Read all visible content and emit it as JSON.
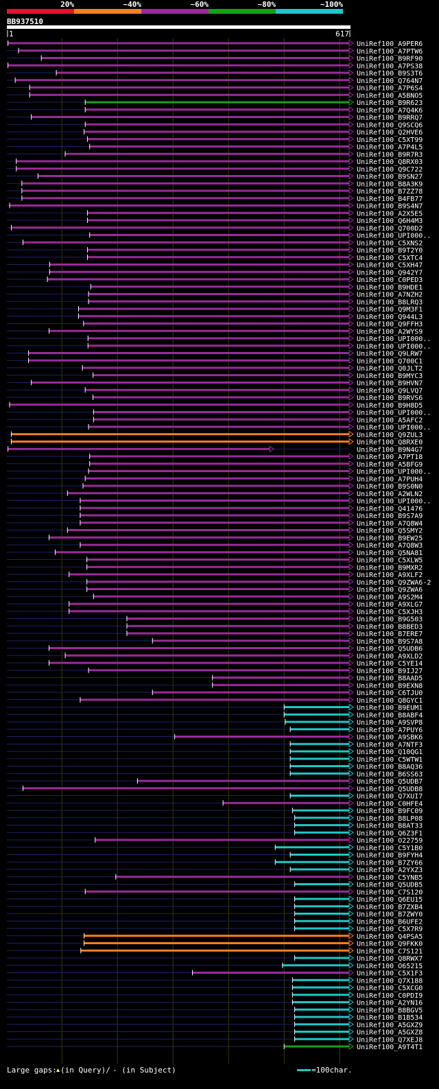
{
  "chart_data": {
    "type": "alignment-overview",
    "query_name": "BB937510",
    "query_start_label": "1",
    "query_end_label": "617",
    "query_length": 617,
    "identity_legend": [
      {
        "label": "20%",
        "color": "#e8112d"
      },
      {
        "label": "~40%",
        "color": "#ff7f1e"
      },
      {
        "label": "~60%",
        "color": "#9b2b9b"
      },
      {
        "label": "~80%",
        "color": "#16a016"
      },
      {
        "label": "~100%",
        "color": "#1ec8c8"
      }
    ],
    "footer": {
      "gaps_label": "Large gaps:",
      "gaps_query_text": "(in Query)/",
      "gaps_subject_text": "- (in Subject)",
      "scale_text": "=100char."
    },
    "hits": [
      {
        "name": "UniRef100_A9PER6",
        "start": 3,
        "end": 617,
        "class": "60"
      },
      {
        "name": "UniRef100_A7PTW6",
        "start": 22,
        "end": 617,
        "class": "60"
      },
      {
        "name": "UniRef100_B9RF90",
        "start": 63,
        "end": 617,
        "class": "60"
      },
      {
        "name": "UniRef100_A7PS38",
        "start": 3,
        "end": 617,
        "class": "60"
      },
      {
        "name": "UniRef100_B9S3T6",
        "start": 90,
        "end": 617,
        "class": "60"
      },
      {
        "name": "UniRef100_Q764N7",
        "start": 16,
        "end": 617,
        "class": "60"
      },
      {
        "name": "UniRef100_A7P6S4",
        "start": 42,
        "end": 617,
        "class": "60"
      },
      {
        "name": "UniRef100_A5BNO5",
        "start": 42,
        "end": 617,
        "class": "60"
      },
      {
        "name": "UniRef100_B9R623",
        "start": 142,
        "end": 617,
        "class": "80"
      },
      {
        "name": "UniRef100_A7Q4K6",
        "start": 142,
        "end": 617,
        "class": "60"
      },
      {
        "name": "UniRef100_B9RRQ7",
        "start": 45,
        "end": 617,
        "class": "60"
      },
      {
        "name": "UniRef100_Q9SCQ6",
        "start": 142,
        "end": 617,
        "class": "60"
      },
      {
        "name": "UniRef100_Q2HVE6",
        "start": 140,
        "end": 617,
        "class": "60"
      },
      {
        "name": "UniRef100_C5XT99",
        "start": 146,
        "end": 617,
        "class": "60"
      },
      {
        "name": "UniRef100_A7P4L5",
        "start": 150,
        "end": 617,
        "class": "60"
      },
      {
        "name": "UniRef100_B9R7R3",
        "start": 106,
        "end": 617,
        "class": "60"
      },
      {
        "name": "UniRef100_Q8RX03",
        "start": 18,
        "end": 617,
        "class": "60"
      },
      {
        "name": "UniRef100_Q9C722",
        "start": 18,
        "end": 617,
        "class": "60"
      },
      {
        "name": "UniRef100_B9SN27",
        "start": 57,
        "end": 617,
        "class": "60"
      },
      {
        "name": "UniRef100_B8A3K9",
        "start": 28,
        "end": 617,
        "class": "60"
      },
      {
        "name": "UniRef100_B7ZZ78",
        "start": 28,
        "end": 617,
        "class": "60"
      },
      {
        "name": "UniRef100_B4FB77",
        "start": 28,
        "end": 617,
        "class": "60"
      },
      {
        "name": "UniRef100_B9S4N7",
        "start": 6,
        "end": 617,
        "class": "60"
      },
      {
        "name": "UniRef100_A2X5E5",
        "start": 146,
        "end": 617,
        "class": "60"
      },
      {
        "name": "UniRef100_Q6H4M3",
        "start": 146,
        "end": 617,
        "class": "60"
      },
      {
        "name": "UniRef100_Q700D2",
        "start": 9,
        "end": 617,
        "class": "60"
      },
      {
        "name": "UniRef100_UPI000..",
        "start": 150,
        "end": 617,
        "class": "60"
      },
      {
        "name": "UniRef100_C5XNS2",
        "start": 30,
        "end": 617,
        "class": "60"
      },
      {
        "name": "UniRef100_B9T2Y0",
        "start": 146,
        "end": 617,
        "class": "60"
      },
      {
        "name": "UniRef100_C5XTC4",
        "start": 146,
        "end": 617,
        "class": "60"
      },
      {
        "name": "UniRef100_C5XH47",
        "start": 78,
        "end": 617,
        "class": "60"
      },
      {
        "name": "UniRef100_Q942Y7",
        "start": 78,
        "end": 617,
        "class": "60"
      },
      {
        "name": "UniRef100_C0PED3",
        "start": 74,
        "end": 617,
        "class": "60"
      },
      {
        "name": "UniRef100_B9HDE1",
        "start": 152,
        "end": 617,
        "class": "60"
      },
      {
        "name": "UniRef100_A7NZH2",
        "start": 148,
        "end": 617,
        "class": "60"
      },
      {
        "name": "UniRef100_B8LRQ3",
        "start": 148,
        "end": 617,
        "class": "60"
      },
      {
        "name": "UniRef100_Q9M3F1",
        "start": 130,
        "end": 617,
        "class": "60"
      },
      {
        "name": "UniRef100_Q944L3",
        "start": 130,
        "end": 617,
        "class": "60"
      },
      {
        "name": "UniRef100_Q9FFH3",
        "start": 139,
        "end": 617,
        "class": "60"
      },
      {
        "name": "UniRef100_A2WYS9",
        "start": 77,
        "end": 617,
        "class": "60"
      },
      {
        "name": "UniRef100_UPI000..",
        "start": 147,
        "end": 617,
        "class": "60"
      },
      {
        "name": "UniRef100_UPI000..",
        "start": 147,
        "end": 617,
        "class": "60"
      },
      {
        "name": "UniRef100_Q9LRW7",
        "start": 40,
        "end": 617,
        "class": "60"
      },
      {
        "name": "UniRef100_Q700C1",
        "start": 40,
        "end": 617,
        "class": "60"
      },
      {
        "name": "UniRef100_Q0JLT2",
        "start": 137,
        "end": 617,
        "class": "60"
      },
      {
        "name": "UniRef100_B9MYC3",
        "start": 156,
        "end": 617,
        "class": "60"
      },
      {
        "name": "UniRef100_B9HVN7",
        "start": 45,
        "end": 617,
        "class": "60"
      },
      {
        "name": "UniRef100_Q9LVQ7",
        "start": 142,
        "end": 617,
        "class": "60"
      },
      {
        "name": "UniRef100_B9RVS6",
        "start": 156,
        "end": 617,
        "class": "60"
      },
      {
        "name": "UniRef100_B9H8D5",
        "start": 6,
        "end": 617,
        "class": "60"
      },
      {
        "name": "UniRef100_UPI000..",
        "start": 157,
        "end": 617,
        "class": "60"
      },
      {
        "name": "UniRef100_A5AFC2",
        "start": 157,
        "end": 617,
        "class": "60"
      },
      {
        "name": "UniRef100_UPI000..",
        "start": 148,
        "end": 617,
        "class": "60"
      },
      {
        "name": "UniRef100_Q9ZUL3",
        "start": 9,
        "end": 617,
        "class": "40"
      },
      {
        "name": "UniRef100_Q8RXE0",
        "start": 9,
        "end": 617,
        "class": "40"
      },
      {
        "name": "UniRef100_B9N4G7",
        "start": 3,
        "end": 474,
        "class": "60"
      },
      {
        "name": "UniRef100_A7PT18",
        "start": 150,
        "end": 617,
        "class": "60"
      },
      {
        "name": "UniRef100_A5BFG9",
        "start": 150,
        "end": 617,
        "class": "60"
      },
      {
        "name": "UniRef100_UPI000..",
        "start": 148,
        "end": 617,
        "class": "60"
      },
      {
        "name": "UniRef100_A7PUH4",
        "start": 142,
        "end": 617,
        "class": "60"
      },
      {
        "name": "UniRef100_B9S0N0",
        "start": 138,
        "end": 617,
        "class": "60"
      },
      {
        "name": "UniRef100_A2WLN2",
        "start": 110,
        "end": 617,
        "class": "60"
      },
      {
        "name": "UniRef100_UPI000..",
        "start": 133,
        "end": 617,
        "class": "60"
      },
      {
        "name": "UniRef100_Q41476",
        "start": 133,
        "end": 617,
        "class": "60"
      },
      {
        "name": "UniRef100_B9S7A9",
        "start": 133,
        "end": 617,
        "class": "60"
      },
      {
        "name": "UniRef100_A7Q8W4",
        "start": 133,
        "end": 617,
        "class": "60"
      },
      {
        "name": "UniRef100_Q5SMY2",
        "start": 110,
        "end": 617,
        "class": "60"
      },
      {
        "name": "UniRef100_B9EW25",
        "start": 77,
        "end": 617,
        "class": "60"
      },
      {
        "name": "UniRef100_A7Q8W3",
        "start": 133,
        "end": 617,
        "class": "60"
      },
      {
        "name": "UniRef100_Q5NA81",
        "start": 88,
        "end": 617,
        "class": "60"
      },
      {
        "name": "UniRef100_C5XLW5",
        "start": 145,
        "end": 617,
        "class": "60"
      },
      {
        "name": "UniRef100_B9MXR2",
        "start": 145,
        "end": 617,
        "class": "60"
      },
      {
        "name": "UniRef100_A9XLF2",
        "start": 113,
        "end": 617,
        "class": "60"
      },
      {
        "name": "UniRef100_Q9ZWA6-2",
        "start": 145,
        "end": 617,
        "class": "60"
      },
      {
        "name": "UniRef100_Q9ZWA6",
        "start": 145,
        "end": 617,
        "class": "60"
      },
      {
        "name": "UniRef100_A9S2M4",
        "start": 157,
        "end": 617,
        "class": "60"
      },
      {
        "name": "UniRef100_A9XLG7",
        "start": 113,
        "end": 617,
        "class": "60"
      },
      {
        "name": "UniRef100_C5XJH3",
        "start": 113,
        "end": 617,
        "class": "60"
      },
      {
        "name": "UniRef100_B9G503",
        "start": 217,
        "end": 617,
        "class": "60"
      },
      {
        "name": "UniRef100_B8BED3",
        "start": 217,
        "end": 617,
        "class": "60"
      },
      {
        "name": "UniRef100_B7ERE7",
        "start": 217,
        "end": 617,
        "class": "60"
      },
      {
        "name": "UniRef100_B9S7A8",
        "start": 263,
        "end": 617,
        "class": "60"
      },
      {
        "name": "UniRef100_Q5UDB6",
        "start": 77,
        "end": 617,
        "class": "60"
      },
      {
        "name": "UniRef100_A9XLD2",
        "start": 106,
        "end": 617,
        "class": "60"
      },
      {
        "name": "UniRef100_C5YE14",
        "start": 77,
        "end": 617,
        "class": "60"
      },
      {
        "name": "UniRef100_B9IJ27",
        "start": 148,
        "end": 617,
        "class": "60"
      },
      {
        "name": "UniRef100_B8AAD5",
        "start": 371,
        "end": 617,
        "class": "60"
      },
      {
        "name": "UniRef100_B9EXN8",
        "start": 371,
        "end": 617,
        "class": "60"
      },
      {
        "name": "UniRef100_C6TJU0",
        "start": 263,
        "end": 617,
        "class": "60"
      },
      {
        "name": "UniRef100_Q8GYC1",
        "start": 133,
        "end": 617,
        "class": "60"
      },
      {
        "name": "UniRef100_B9EUM1",
        "start": 500,
        "end": 617,
        "class": "100"
      },
      {
        "name": "UniRef100_B8ABF4",
        "start": 500,
        "end": 617,
        "class": "100"
      },
      {
        "name": "UniRef100_A9SVP8",
        "start": 502,
        "end": 617,
        "class": "100"
      },
      {
        "name": "UniRef100_A7PUY6",
        "start": 511,
        "end": 617,
        "class": "100"
      },
      {
        "name": "UniRef100_A9SBK6",
        "start": 303,
        "end": 617,
        "class": "60"
      },
      {
        "name": "UniRef100_A7NTF3",
        "start": 511,
        "end": 617,
        "class": "100"
      },
      {
        "name": "UniRef100_Q10QG1",
        "start": 511,
        "end": 617,
        "class": "100"
      },
      {
        "name": "UniRef100_C5WTW1",
        "start": 511,
        "end": 617,
        "class": "100"
      },
      {
        "name": "UniRef100_B8AQ36",
        "start": 511,
        "end": 617,
        "class": "100"
      },
      {
        "name": "UniRef100_B6SS63",
        "start": 511,
        "end": 617,
        "class": "100"
      },
      {
        "name": "UniRef100_Q5UDB7",
        "start": 236,
        "end": 617,
        "class": "60"
      },
      {
        "name": "UniRef100_Q5UDB8",
        "start": 30,
        "end": 617,
        "class": "60"
      },
      {
        "name": "UniRef100_Q7XUI7",
        "start": 511,
        "end": 617,
        "class": "100"
      },
      {
        "name": "UniRef100_C0HFE4",
        "start": 390,
        "end": 617,
        "class": "60"
      },
      {
        "name": "UniRef100_B9FC09",
        "start": 515,
        "end": 617,
        "class": "100"
      },
      {
        "name": "UniRef100_B8LP08",
        "start": 519,
        "end": 617,
        "class": "100"
      },
      {
        "name": "UniRef100_B8AT33",
        "start": 519,
        "end": 617,
        "class": "100"
      },
      {
        "name": "UniRef100_Q6Z3F1",
        "start": 519,
        "end": 617,
        "class": "100"
      },
      {
        "name": "UniRef100_O22759",
        "start": 160,
        "end": 617,
        "class": "60"
      },
      {
        "name": "UniRef100_C5Y1B0",
        "start": 484,
        "end": 617,
        "class": "100"
      },
      {
        "name": "UniRef100_B9FYH4",
        "start": 511,
        "end": 617,
        "class": "100"
      },
      {
        "name": "UniRef100_B7ZY66",
        "start": 484,
        "end": 617,
        "class": "100"
      },
      {
        "name": "UniRef100_A2YXZ3",
        "start": 511,
        "end": 617,
        "class": "100"
      },
      {
        "name": "UniRef100_C5YNB5",
        "start": 197,
        "end": 617,
        "class": "60"
      },
      {
        "name": "UniRef100_Q5UDB5",
        "start": 519,
        "end": 617,
        "class": "100"
      },
      {
        "name": "UniRef100_C7S120",
        "start": 142,
        "end": 617,
        "class": "60"
      },
      {
        "name": "UniRef100_Q6EU15",
        "start": 519,
        "end": 617,
        "class": "100"
      },
      {
        "name": "UniRef100_B7ZXB4",
        "start": 519,
        "end": 617,
        "class": "100"
      },
      {
        "name": "UniRef100_B7ZWY0",
        "start": 519,
        "end": 617,
        "class": "100"
      },
      {
        "name": "UniRef100_B6UFE2",
        "start": 519,
        "end": 617,
        "class": "100"
      },
      {
        "name": "UniRef100_C5X7R9",
        "start": 519,
        "end": 617,
        "class": "100"
      },
      {
        "name": "UniRef100_Q4PSA5",
        "start": 140,
        "end": 617,
        "class": "40"
      },
      {
        "name": "UniRef100_Q9FKK0",
        "start": 140,
        "end": 617,
        "class": "40"
      },
      {
        "name": "UniRef100_C7S121",
        "start": 134,
        "end": 617,
        "class": "40"
      },
      {
        "name": "UniRef100_Q8RWX7",
        "start": 519,
        "end": 617,
        "class": "100"
      },
      {
        "name": "UniRef100_O65215",
        "start": 497,
        "end": 617,
        "class": "100"
      },
      {
        "name": "UniRef100_C5X1F3",
        "start": 335,
        "end": 617,
        "class": "60"
      },
      {
        "name": "UniRef100_Q7X188",
        "start": 515,
        "end": 617,
        "class": "100"
      },
      {
        "name": "UniRef100_C5XCG0",
        "start": 515,
        "end": 617,
        "class": "100"
      },
      {
        "name": "UniRef100_C0PDI9",
        "start": 515,
        "end": 617,
        "class": "100"
      },
      {
        "name": "UniRef100_A2YN16",
        "start": 515,
        "end": 617,
        "class": "100"
      },
      {
        "name": "UniRef100_B8BGV5",
        "start": 519,
        "end": 617,
        "class": "100"
      },
      {
        "name": "UniRef100_B1B534",
        "start": 519,
        "end": 617,
        "class": "100"
      },
      {
        "name": "UniRef100_A5GXZ9",
        "start": 519,
        "end": 617,
        "class": "100"
      },
      {
        "name": "UniRef100_A5GXZ8",
        "start": 519,
        "end": 617,
        "class": "100"
      },
      {
        "name": "UniRef100_Q7XEJ8",
        "start": 519,
        "end": 617,
        "class": "100"
      },
      {
        "name": "UniRef100_A9T4T1",
        "start": 500,
        "end": 617,
        "class": "80"
      }
    ]
  },
  "colors": {
    "background": "#000000",
    "grid": "#3a3a00",
    "query_bar": "#ffffff",
    "gap_marker": "#ffff80",
    "dashed_bg": "#1c2366",
    "c20": "#e8112d",
    "c40": "#ff7f1e",
    "c60": "#9b2b9b",
    "c80": "#16a016",
    "c100": "#1ec8c8"
  }
}
